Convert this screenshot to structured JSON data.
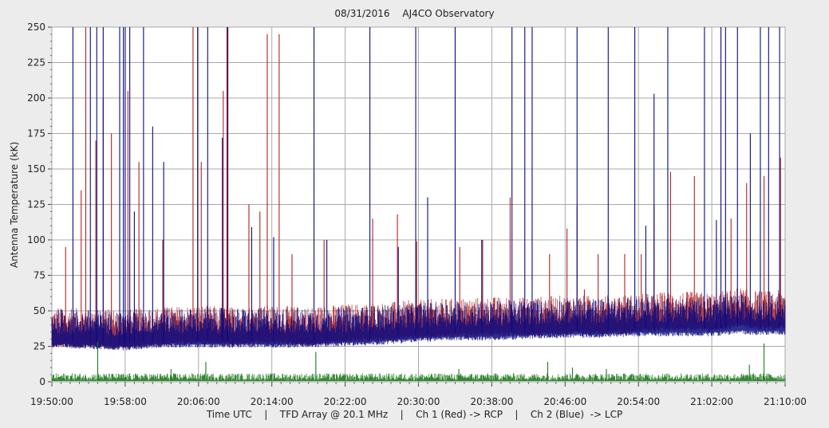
{
  "chart_data": {
    "type": "line",
    "title_date": "08/31/2016",
    "title_observatory": "AJ4CO Observatory",
    "ylabel": "Antenna Temperature (kK)",
    "ylim": [
      0,
      250
    ],
    "yticks": [
      "0",
      "25",
      "50",
      "75",
      "100",
      "125",
      "150",
      "175",
      "200",
      "225",
      "250"
    ],
    "xlim": [
      "19:50:00",
      "21:10:00"
    ],
    "xticks": [
      "19:50:00",
      "19:58:00",
      "20:06:00",
      "20:14:00",
      "20:22:00",
      "20:30:00",
      "20:38:00",
      "20:46:00",
      "20:54:00",
      "21:02:00",
      "21:10:00"
    ],
    "grid": true,
    "footer": {
      "time_label": "Time UTC",
      "array_label": "TFD Array @ 20.1 MHz",
      "ch1_label": "Ch 1 (Red) -> RCP",
      "ch2_label": "Ch 2 (Blue)  -> LCP",
      "separator": "|"
    },
    "series": [
      {
        "channel": "ch1",
        "color": "#b22222",
        "baseline": [
          [
            0,
            29
          ],
          [
            4,
            29
          ],
          [
            8,
            28
          ],
          [
            12,
            30
          ],
          [
            16,
            31
          ],
          [
            20,
            30
          ],
          [
            24,
            31
          ],
          [
            28,
            30
          ],
          [
            32,
            32
          ],
          [
            36,
            33
          ],
          [
            40,
            35
          ],
          [
            44,
            36
          ],
          [
            48,
            37
          ],
          [
            52,
            37
          ],
          [
            56,
            38
          ],
          [
            60,
            38
          ],
          [
            64,
            39
          ],
          [
            68,
            41
          ],
          [
            72,
            40
          ],
          [
            74,
            42
          ],
          [
            75,
            44
          ],
          [
            76,
            42
          ],
          [
            78,
            41
          ],
          [
            80,
            42
          ]
        ],
        "peaks": [
          [
            1.5,
            95
          ],
          [
            3.2,
            135
          ],
          [
            3.7,
            250
          ],
          [
            4.8,
            170
          ],
          [
            5.6,
            200
          ],
          [
            6.5,
            175
          ],
          [
            8.3,
            205
          ],
          [
            9.5,
            155
          ],
          [
            12.1,
            100
          ],
          [
            15.4,
            250
          ],
          [
            16.3,
            155
          ],
          [
            18.7,
            205
          ],
          [
            19.1,
            250
          ],
          [
            21.5,
            125
          ],
          [
            22.7,
            120
          ],
          [
            23.5,
            245
          ],
          [
            24.8,
            245
          ],
          [
            26.2,
            90
          ],
          [
            29.7,
            100
          ],
          [
            35.0,
            115
          ],
          [
            37.7,
            118
          ],
          [
            39.8,
            99
          ],
          [
            44.5,
            95
          ],
          [
            47.0,
            100
          ],
          [
            50.0,
            130
          ],
          [
            54.3,
            90
          ],
          [
            56.2,
            108
          ],
          [
            57.3,
            124
          ],
          [
            58.1,
            65
          ],
          [
            59.6,
            90
          ],
          [
            62.5,
            90
          ],
          [
            64.3,
            90
          ],
          [
            65.7,
            125
          ],
          [
            67.5,
            148
          ],
          [
            70.1,
            145
          ],
          [
            74.1,
            115
          ],
          [
            75.8,
            140
          ],
          [
            77.7,
            145
          ],
          [
            79.5,
            158
          ]
        ]
      },
      {
        "channel": "ch2",
        "color": "#0a0a80",
        "baseline": [
          [
            0,
            29
          ],
          [
            4,
            28
          ],
          [
            8,
            27
          ],
          [
            12,
            29
          ],
          [
            16,
            29
          ],
          [
            20,
            29
          ],
          [
            24,
            29
          ],
          [
            28,
            29
          ],
          [
            32,
            30
          ],
          [
            36,
            31
          ],
          [
            40,
            33
          ],
          [
            44,
            34
          ],
          [
            48,
            34
          ],
          [
            52,
            35
          ],
          [
            56,
            36
          ],
          [
            60,
            36
          ],
          [
            64,
            37
          ],
          [
            68,
            37
          ],
          [
            72,
            37
          ],
          [
            74,
            38
          ],
          [
            75,
            39
          ],
          [
            76,
            38
          ],
          [
            78,
            38
          ],
          [
            80,
            38
          ]
        ],
        "peaks": [
          [
            2.3,
            250
          ],
          [
            4.2,
            250
          ],
          [
            4.9,
            250
          ],
          [
            5.6,
            250
          ],
          [
            7.4,
            250
          ],
          [
            7.8,
            250
          ],
          [
            8.0,
            250
          ],
          [
            8.5,
            250
          ],
          [
            9.0,
            120
          ],
          [
            10.0,
            250
          ],
          [
            11.0,
            180
          ],
          [
            12.2,
            155
          ],
          [
            15.9,
            250
          ],
          [
            17.0,
            250
          ],
          [
            18.6,
            172
          ],
          [
            19.2,
            250
          ],
          [
            21.8,
            109
          ],
          [
            24.2,
            102
          ],
          [
            28.6,
            250
          ],
          [
            30.0,
            100
          ],
          [
            34.7,
            250
          ],
          [
            37.8,
            95
          ],
          [
            39.7,
            250
          ],
          [
            41.0,
            130
          ],
          [
            44.0,
            250
          ],
          [
            46.9,
            100
          ],
          [
            50.2,
            250
          ],
          [
            51.6,
            250
          ],
          [
            52.4,
            250
          ],
          [
            57.3,
            250
          ],
          [
            60.7,
            250
          ],
          [
            63.6,
            250
          ],
          [
            64.8,
            110
          ],
          [
            65.7,
            203
          ],
          [
            67.2,
            250
          ],
          [
            71.2,
            250
          ],
          [
            72.5,
            114
          ],
          [
            73.0,
            250
          ],
          [
            73.5,
            250
          ],
          [
            74.8,
            250
          ],
          [
            76.2,
            175
          ],
          [
            77.3,
            250
          ],
          [
            78.2,
            250
          ],
          [
            79.4,
            250
          ]
        ]
      },
      {
        "channel": "difference",
        "color": "#1e7a1e",
        "baseline": [
          [
            0,
            1
          ],
          [
            40,
            1
          ],
          [
            80,
            1
          ]
        ],
        "peaks": [
          [
            5.0,
            28
          ],
          [
            13.0,
            9
          ],
          [
            16.8,
            14
          ],
          [
            28.8,
            21
          ],
          [
            44.4,
            9
          ],
          [
            54.1,
            14
          ],
          [
            56.8,
            10
          ],
          [
            60.5,
            9
          ],
          [
            76.1,
            12
          ],
          [
            77.7,
            27
          ]
        ]
      }
    ]
  }
}
